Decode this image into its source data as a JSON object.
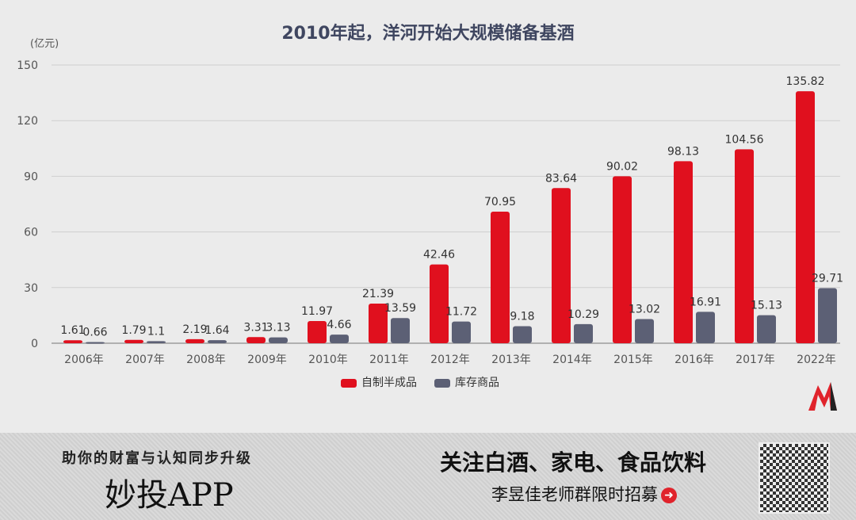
{
  "chart_data": {
    "type": "bar",
    "title": "2010年起，洋河开始大规模储备基酒",
    "ylabel": "(亿元)",
    "ylim": [
      0,
      150
    ],
    "yticks": [
      0,
      30,
      60,
      90,
      120,
      150
    ],
    "grid": true,
    "legend_position": "bottom",
    "categories": [
      "2006年",
      "2007年",
      "2008年",
      "2009年",
      "2010年",
      "2011年",
      "2012年",
      "2013年",
      "2014年",
      "2015年",
      "2016年",
      "2017年",
      "2022年"
    ],
    "series": [
      {
        "name": "自制半成品",
        "color": "#e0101e",
        "values": [
          1.61,
          1.79,
          2.19,
          3.31,
          11.97,
          21.39,
          42.46,
          70.95,
          83.64,
          90.02,
          98.13,
          104.56,
          135.82
        ]
      },
      {
        "name": "库存商品",
        "color": "#5c6075",
        "values": [
          0.66,
          1.1,
          1.64,
          3.13,
          4.66,
          13.59,
          11.72,
          9.18,
          10.29,
          13.02,
          16.91,
          15.13,
          29.71
        ]
      }
    ]
  },
  "footer": {
    "slogan": "助你的财富与认知同步升级",
    "app_name": "妙投APP",
    "follow": "关注白酒、家电、食品饮料",
    "recruit": "李昱佳老师群限时招募"
  }
}
